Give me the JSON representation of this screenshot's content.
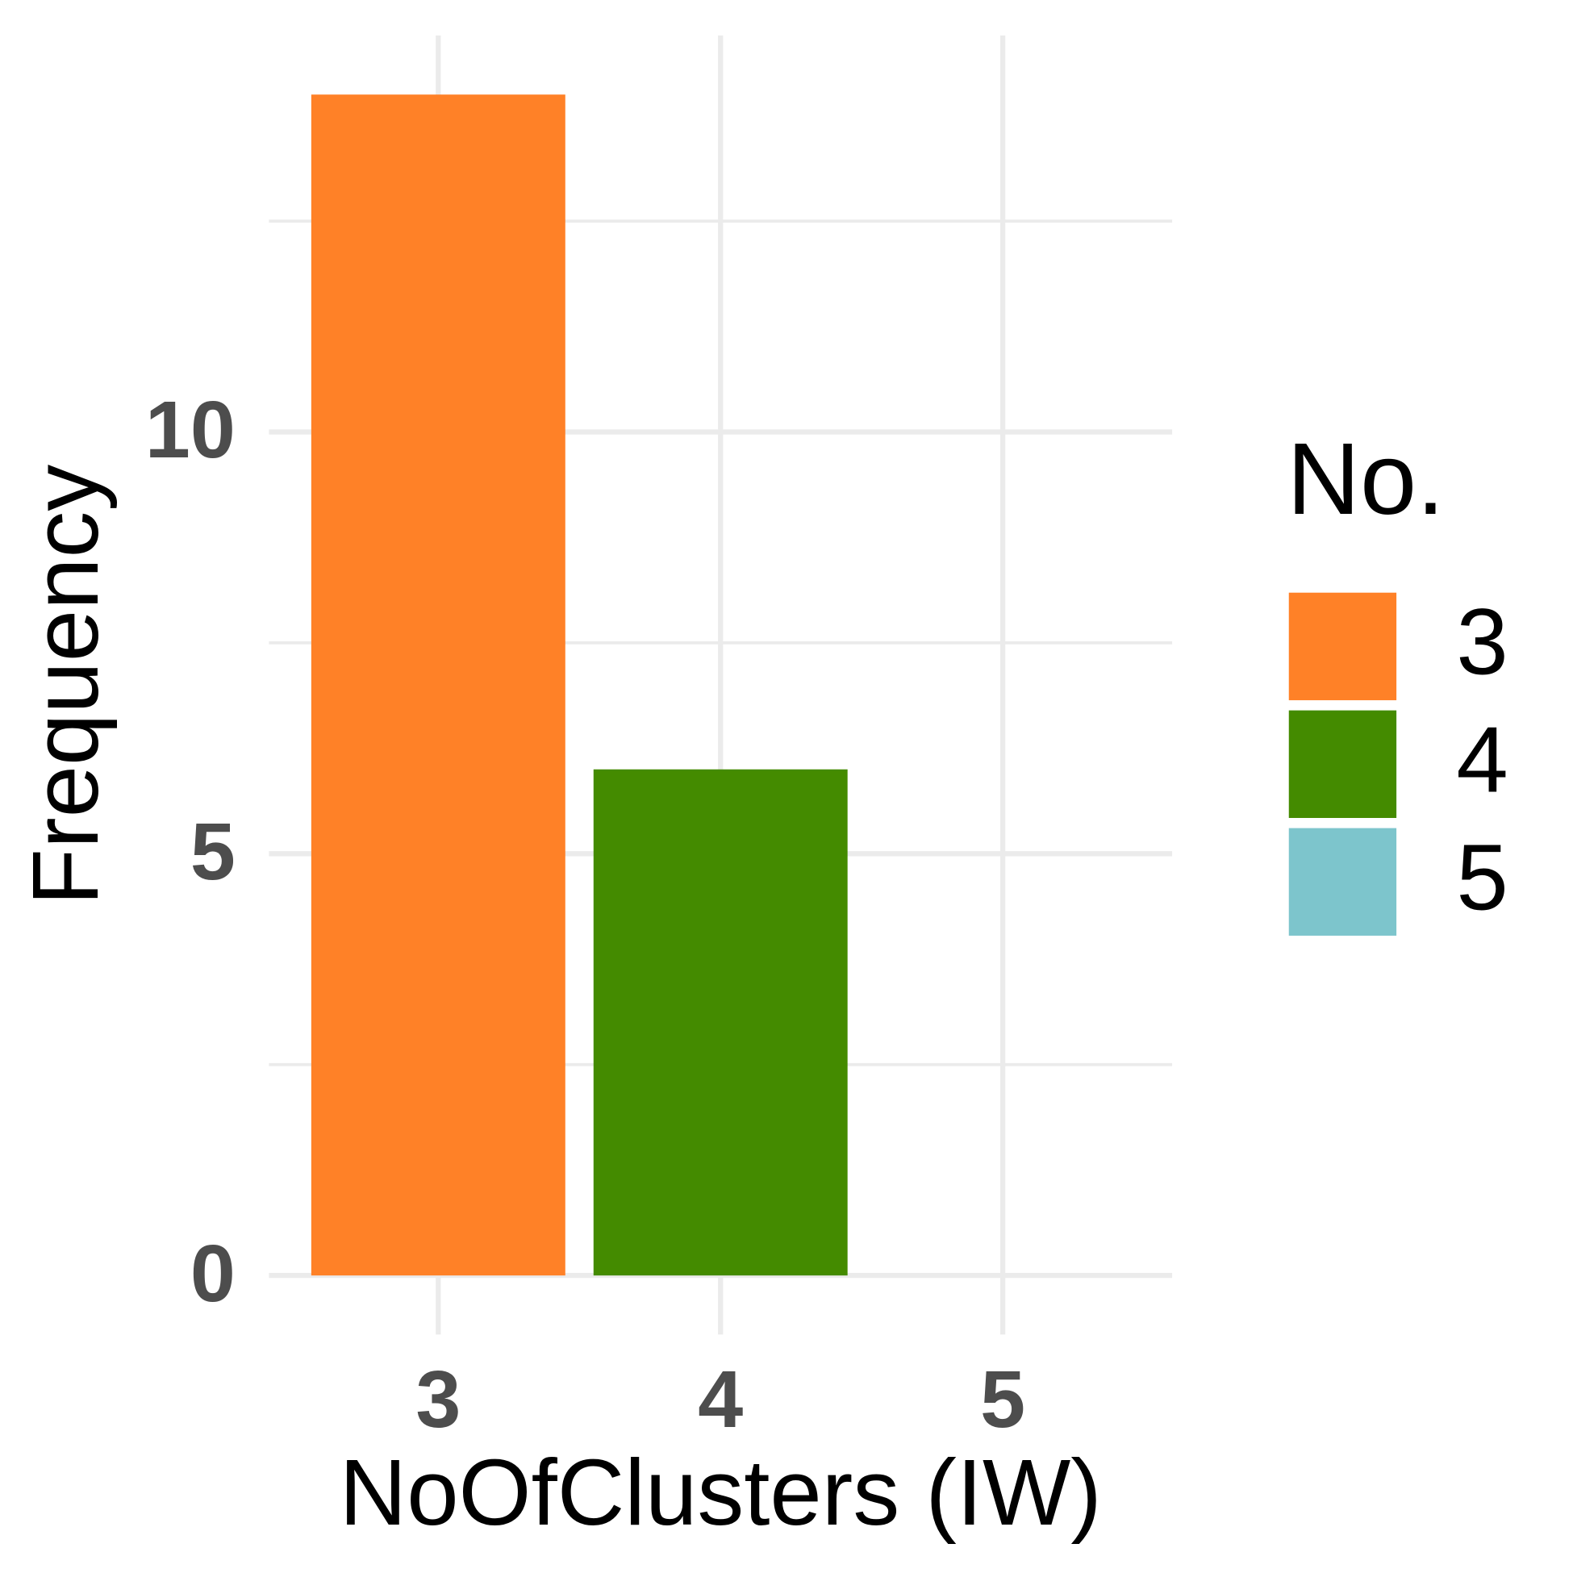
{
  "chart_data": {
    "type": "bar",
    "x_label": "NoOfClusters (IW)",
    "y_label": "Frequency",
    "categories": [
      "3",
      "4",
      "5"
    ],
    "values": [
      14,
      6,
      0
    ],
    "colors": [
      "#ff8127",
      "#448b00",
      "#7dc5cc"
    ],
    "legend_title": "No.",
    "legend_position": "right",
    "ylim": [
      -0.7,
      14.7
    ],
    "yticks": [
      0,
      5,
      10
    ],
    "minor_yticks": [
      2.5,
      7.5,
      12.5
    ],
    "grid": true
  }
}
